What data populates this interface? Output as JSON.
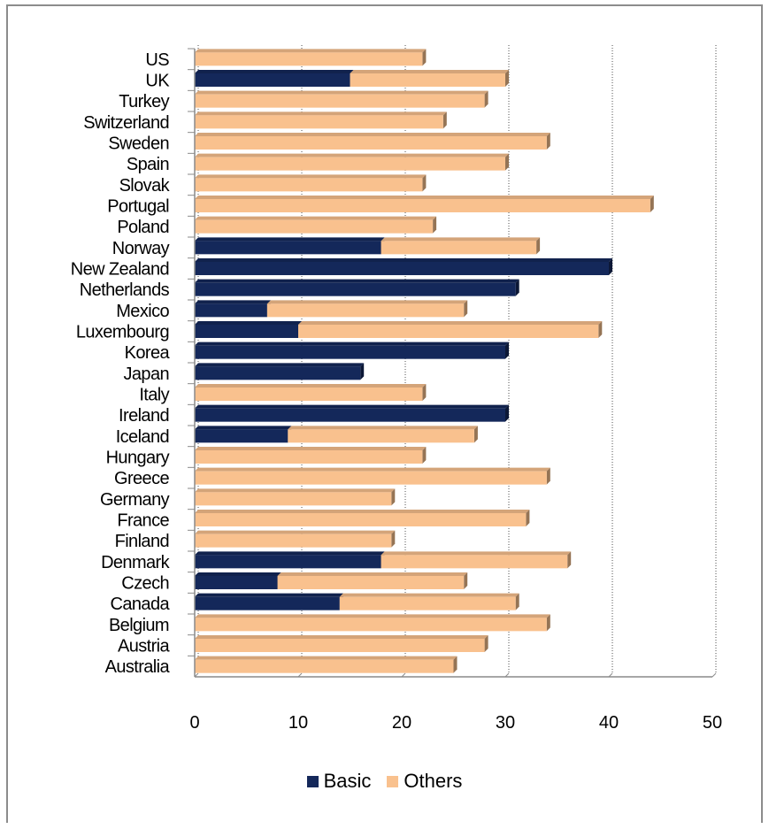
{
  "chart_data": {
    "type": "bar",
    "orientation": "horizontal",
    "stacked": true,
    "title": "",
    "xlabel": "",
    "ylabel": "",
    "xlim": [
      0,
      50
    ],
    "x_ticks": [
      "0",
      "10",
      "20",
      "30",
      "40",
      "50"
    ],
    "grid": true,
    "legend_position": "bottom",
    "categories": [
      "US",
      "UK",
      "Turkey",
      "Switzerland",
      "Sweden",
      "Spain",
      "Slovak",
      "Portugal",
      "Poland",
      "Norway",
      "New Zealand",
      "Netherlands",
      "Mexico",
      "Luxembourg",
      "Korea",
      "Japan",
      "Italy",
      "Ireland",
      "Iceland",
      "Hungary",
      "Greece",
      "Germany",
      "France",
      "Finland",
      "Denmark",
      "Czech",
      "Canada",
      "Belgium",
      "Austria",
      "Australia"
    ],
    "series": [
      {
        "name": "Basic",
        "color": "#14285a",
        "values": [
          0,
          15,
          0,
          0,
          0,
          0,
          0,
          0,
          0,
          18,
          40,
          31,
          7,
          10,
          30,
          16,
          0,
          30,
          9,
          0,
          0,
          0,
          0,
          0,
          18,
          8,
          14,
          0,
          0,
          0
        ]
      },
      {
        "name": "Others",
        "color": "#f9c18e",
        "values": [
          22,
          15,
          28,
          24,
          34,
          30,
          22,
          44,
          23,
          15,
          0,
          0,
          19,
          29,
          0,
          0,
          22,
          0,
          18,
          22,
          34,
          19,
          32,
          19,
          18,
          18,
          17,
          34,
          28,
          25
        ]
      }
    ]
  }
}
